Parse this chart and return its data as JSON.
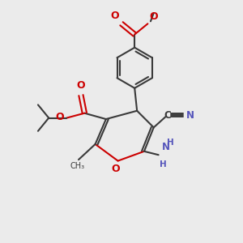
{
  "bg_color": "#ebebeb",
  "bond_color": "#3a3a3a",
  "o_color": "#cc0000",
  "n_color": "#5555bb",
  "lw": 1.5,
  "lw_d": 1.4,
  "fig_size": [
    3.0,
    3.0
  ],
  "dpi": 100,
  "xlim": [
    0,
    10
  ],
  "ylim": [
    0,
    10
  ]
}
